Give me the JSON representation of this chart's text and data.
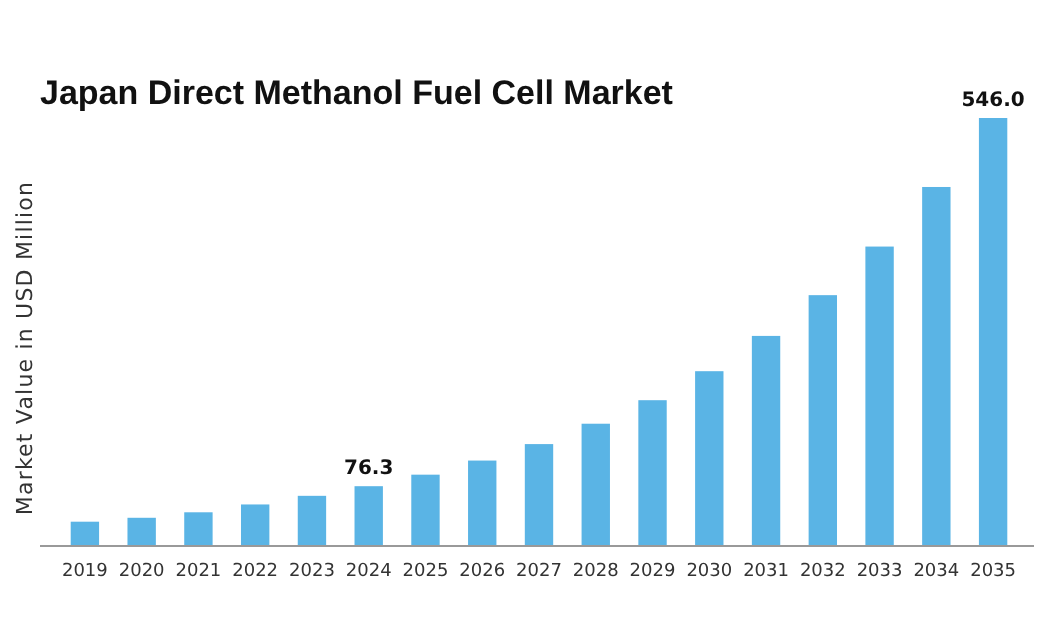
{
  "chart_data": {
    "type": "bar",
    "title": "Japan Direct Methanol Fuel Cell Market",
    "ylabel": "Market Value in USD Million",
    "categories": [
      "2019",
      "2020",
      "2021",
      "2022",
      "2023",
      "2024",
      "2025",
      "2026",
      "2027",
      "2028",
      "2029",
      "2030",
      "2031",
      "2032",
      "2033",
      "2034",
      "2035"
    ],
    "values": [
      31,
      36,
      43,
      53,
      64,
      76.3,
      91,
      109,
      130,
      156,
      186,
      223,
      268,
      320,
      382,
      458,
      546.0
    ],
    "value_labels": [
      null,
      null,
      null,
      null,
      null,
      "76.3",
      null,
      null,
      null,
      null,
      null,
      null,
      null,
      null,
      null,
      null,
      "546.0"
    ],
    "color": "#5ab4e5",
    "ylim": [
      0,
      546
    ]
  }
}
